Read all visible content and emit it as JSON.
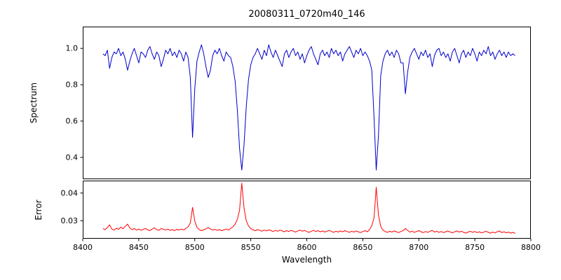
{
  "figure": {
    "title": "20080311_0720m40_146",
    "xlabel": "Wavelength",
    "background": "#ffffff"
  },
  "chart_data": [
    {
      "type": "line",
      "name": "Spectrum",
      "title": "20080311_0720m40_146",
      "ylabel": "Spectrum",
      "color": "#0000cc",
      "line_width": 1,
      "grid": false,
      "legend": "none",
      "xlim": [
        8400,
        8800
      ],
      "ylim": [
        0.28,
        1.12
      ],
      "yticks": [
        0.4,
        0.6,
        0.8,
        1.0
      ],
      "ytick_labels": [
        "0.4",
        "0.6",
        "0.8",
        "1.0"
      ],
      "x_start": 8418,
      "x_step": 2,
      "values": [
        0.97,
        0.96,
        0.99,
        0.89,
        0.95,
        0.98,
        0.97,
        1.0,
        0.96,
        0.98,
        0.94,
        0.88,
        0.93,
        0.97,
        1.0,
        0.96,
        0.92,
        0.98,
        0.97,
        0.95,
        0.99,
        1.01,
        0.97,
        0.94,
        0.98,
        0.96,
        0.9,
        0.94,
        0.99,
        0.97,
        1.0,
        0.96,
        0.98,
        0.95,
        0.99,
        0.97,
        0.93,
        0.98,
        0.95,
        0.84,
        0.51,
        0.78,
        0.93,
        0.98,
        1.02,
        0.97,
        0.9,
        0.84,
        0.88,
        0.96,
        0.99,
        0.97,
        1.0,
        0.96,
        0.93,
        0.98,
        0.96,
        0.95,
        0.9,
        0.82,
        0.66,
        0.45,
        0.33,
        0.47,
        0.68,
        0.83,
        0.91,
        0.95,
        0.97,
        1.0,
        0.97,
        0.94,
        0.99,
        0.96,
        1.02,
        0.98,
        0.95,
        0.99,
        0.96,
        0.93,
        0.9,
        0.97,
        0.99,
        0.95,
        0.98,
        1.0,
        0.96,
        0.98,
        0.94,
        0.97,
        0.92,
        0.96,
        0.99,
        1.01,
        0.97,
        0.94,
        0.91,
        0.97,
        0.99,
        0.96,
        0.98,
        0.95,
        1.0,
        0.97,
        0.99,
        0.96,
        0.98,
        0.93,
        0.97,
        0.99,
        1.01,
        0.98,
        0.95,
        0.99,
        0.97,
        1.0,
        0.96,
        0.98,
        0.96,
        0.93,
        0.88,
        0.62,
        0.33,
        0.52,
        0.85,
        0.93,
        0.97,
        0.99,
        0.96,
        0.98,
        0.95,
        0.99,
        0.97,
        0.92,
        0.92,
        0.75,
        0.87,
        0.95,
        0.98,
        1.0,
        0.97,
        0.94,
        0.98,
        0.96,
        0.99,
        0.95,
        0.97,
        0.9,
        0.96,
        0.99,
        1.0,
        0.96,
        0.98,
        0.95,
        0.97,
        0.93,
        0.98,
        1.0,
        0.96,
        0.92,
        0.97,
        0.99,
        0.95,
        0.98,
        0.96,
        1.0,
        0.97,
        0.93,
        0.98,
        0.96,
        0.99,
        0.97,
        1.01,
        0.96,
        0.98,
        0.94,
        0.97,
        0.99,
        0.96,
        0.98,
        0.95,
        0.98,
        0.96,
        0.97,
        0.96
      ],
      "absorption_features": [
        {
          "wavelength": 8498,
          "depth": 0.51
        },
        {
          "wavelength": 8542,
          "depth": 0.33
        },
        {
          "wavelength": 8662,
          "depth": 0.33
        },
        {
          "wavelength": 8688,
          "depth": 0.75
        }
      ]
    },
    {
      "type": "line",
      "name": "Error",
      "ylabel": "Error",
      "xlabel": "Wavelength",
      "color": "#ff0000",
      "line_width": 1,
      "grid": false,
      "legend": "none",
      "xlim": [
        8400,
        8800
      ],
      "ylim": [
        0.0235,
        0.0445
      ],
      "yticks": [
        0.03,
        0.04
      ],
      "ytick_labels": [
        "0.03",
        "0.04"
      ],
      "xticks": [
        8400,
        8450,
        8500,
        8550,
        8600,
        8650,
        8700,
        8750,
        8800
      ],
      "xtick_labels": [
        "8400",
        "8450",
        "8500",
        "8550",
        "8600",
        "8650",
        "8700",
        "8750",
        "8800"
      ],
      "x_start": 8418,
      "x_step": 2,
      "values": [
        0.0272,
        0.0268,
        0.0275,
        0.0285,
        0.027,
        0.0266,
        0.0273,
        0.0269,
        0.0277,
        0.0271,
        0.028,
        0.0288,
        0.0274,
        0.0268,
        0.0272,
        0.0266,
        0.027,
        0.0265,
        0.0269,
        0.0272,
        0.0267,
        0.0264,
        0.027,
        0.0274,
        0.0268,
        0.0265,
        0.0272,
        0.0269,
        0.0266,
        0.027,
        0.0265,
        0.0268,
        0.0264,
        0.0269,
        0.0266,
        0.027,
        0.0267,
        0.0272,
        0.0278,
        0.0292,
        0.0348,
        0.0298,
        0.0276,
        0.0268,
        0.0264,
        0.0267,
        0.0271,
        0.0275,
        0.027,
        0.0266,
        0.0269,
        0.0265,
        0.0268,
        0.0264,
        0.0267,
        0.027,
        0.0266,
        0.0272,
        0.0278,
        0.0288,
        0.0305,
        0.0338,
        0.0436,
        0.0345,
        0.03,
        0.0281,
        0.0272,
        0.0267,
        0.0264,
        0.0268,
        0.0265,
        0.0262,
        0.0266,
        0.0263,
        0.0267,
        0.0264,
        0.0261,
        0.0265,
        0.0262,
        0.0266,
        0.0263,
        0.026,
        0.0264,
        0.0261,
        0.0265,
        0.0262,
        0.0259,
        0.0263,
        0.0266,
        0.0262,
        0.0265,
        0.0261,
        0.0258,
        0.0262,
        0.0265,
        0.0261,
        0.0264,
        0.026,
        0.0263,
        0.0259,
        0.0262,
        0.0265,
        0.0261,
        0.0258,
        0.0262,
        0.0259,
        0.0263,
        0.026,
        0.0264,
        0.0261,
        0.0258,
        0.0262,
        0.0259,
        0.0263,
        0.026,
        0.0257,
        0.0261,
        0.0264,
        0.026,
        0.0268,
        0.0282,
        0.031,
        0.0421,
        0.032,
        0.028,
        0.0266,
        0.0261,
        0.0258,
        0.0262,
        0.0259,
        0.0263,
        0.026,
        0.0257,
        0.0261,
        0.0264,
        0.0272,
        0.0265,
        0.0259,
        0.0262,
        0.0258,
        0.0261,
        0.0264,
        0.026,
        0.0257,
        0.0261,
        0.0258,
        0.0262,
        0.0265,
        0.0259,
        0.0262,
        0.0258,
        0.0261,
        0.0257,
        0.026,
        0.0263,
        0.0259,
        0.0256,
        0.026,
        0.0263,
        0.0259,
        0.0262,
        0.0258,
        0.0255,
        0.0259,
        0.0262,
        0.0258,
        0.0261,
        0.0257,
        0.026,
        0.0256,
        0.0259,
        0.0262,
        0.0258,
        0.0255,
        0.0259,
        0.0256,
        0.026,
        0.0263,
        0.0257,
        0.026,
        0.0256,
        0.0259,
        0.0255,
        0.0258,
        0.0254
      ],
      "error_peaks": [
        {
          "wavelength": 8498,
          "value": 0.035
        },
        {
          "wavelength": 8542,
          "value": 0.044
        },
        {
          "wavelength": 8662,
          "value": 0.042
        }
      ]
    }
  ]
}
